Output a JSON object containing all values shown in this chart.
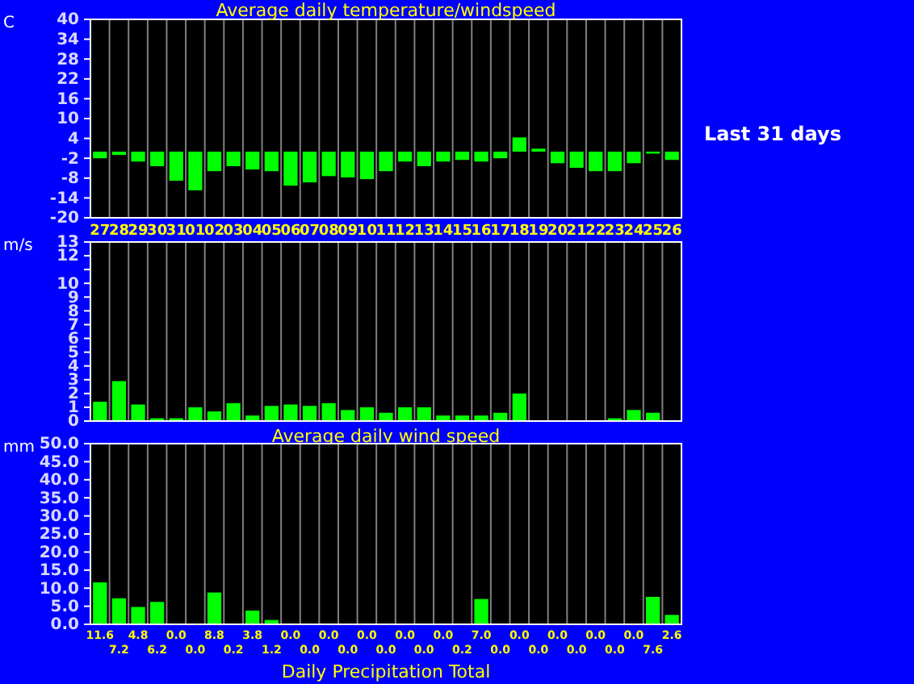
{
  "chart_data": [
    {
      "type": "bar",
      "title": "Average daily temperature/windspeed",
      "ylabel": "C",
      "annotations": [
        "Last 31 days"
      ],
      "categories": [
        "27",
        "28",
        "29",
        "30",
        "31",
        "01",
        "02",
        "03",
        "04",
        "05",
        "06",
        "07",
        "08",
        "09",
        "10",
        "11",
        "12",
        "13",
        "14",
        "15",
        "16",
        "17",
        "18",
        "19",
        "20",
        "21",
        "22",
        "23",
        "24",
        "25",
        "26"
      ],
      "values": [
        -2.0,
        -1.0,
        -3.0,
        -4.4,
        -8.8,
        -11.7,
        -5.9,
        -4.4,
        -5.4,
        -5.9,
        -10.3,
        -9.3,
        -7.4,
        -7.8,
        -8.3,
        -5.9,
        -3.0,
        -4.4,
        -3.0,
        -2.5,
        -3.0,
        -2.0,
        4.3,
        0.9,
        -3.5,
        -4.9,
        -5.9,
        -5.9,
        -3.5,
        -0.6,
        -2.5
      ],
      "color": "#00ff00",
      "ylim": [
        -20,
        40
      ],
      "yticks": [
        -20,
        -14,
        -8,
        -2,
        4,
        10,
        16,
        22,
        28,
        34,
        40
      ],
      "grid": "x"
    },
    {
      "type": "bar",
      "title": "Average daily wind speed",
      "ylabel": "m/s",
      "categories": [
        null,
        null,
        null,
        null,
        null,
        null,
        null,
        null,
        null,
        null,
        null,
        null,
        null,
        null,
        null,
        null,
        null,
        null,
        null,
        null,
        null,
        null,
        null,
        null,
        null,
        null,
        null,
        null,
        null,
        null,
        null
      ],
      "values": [
        1.4,
        2.9,
        1.2,
        0.2,
        0.2,
        1.0,
        0.7,
        1.3,
        0.4,
        1.1,
        1.2,
        1.1,
        1.3,
        0.8,
        1.0,
        0.6,
        1.0,
        1.0,
        0.4,
        0.4,
        0.4,
        0.6,
        2.0,
        0,
        0,
        0,
        0,
        0.2,
        0.8,
        0.6,
        0
      ],
      "color": "#00ff00",
      "ylim": [
        0,
        13
      ],
      "yticks": [
        0,
        1,
        2,
        3,
        4,
        5,
        6,
        7,
        8,
        9,
        10,
        {
          "value": 11,
          "label": null
        },
        12,
        13
      ],
      "grid": "x",
      "tick_labels": "y"
    },
    {
      "type": "bar",
      "title": "Daily Precipitation Total",
      "ylabel": "mm",
      "categories": [
        null,
        null,
        null,
        null,
        null,
        null,
        null,
        null,
        null,
        null,
        null,
        null,
        null,
        null,
        null,
        null,
        null,
        null,
        null,
        null,
        null,
        null,
        null,
        null,
        null,
        null,
        null,
        null,
        null,
        null,
        null
      ],
      "values": [
        11.6,
        7.2,
        4.8,
        6.2,
        0.0,
        0.0,
        8.8,
        0.2,
        3.8,
        1.2,
        0.0,
        0.0,
        0.0,
        0.0,
        0.0,
        0.0,
        0.0,
        0.0,
        0.0,
        0.2,
        7.0,
        0.0,
        0.0,
        0.0,
        0.0,
        0.0,
        0.0,
        0.0,
        0.0,
        7.6,
        2.6
      ],
      "value_labels": [
        "11.6",
        "7.2",
        "4.8",
        "6.2",
        "0.0",
        "0.0",
        "8.8",
        "0.2",
        "3.8",
        "1.2",
        "0.0",
        "0.0",
        "0.0",
        "0.0",
        "0.0",
        "0.0",
        "0.0",
        "0.0",
        "0.0",
        "0.2",
        "7.0",
        "0.0",
        "0.0",
        "0.0",
        "0.0",
        "0.0",
        "0.0",
        "0.0",
        "0.0",
        "7.6",
        "2.6"
      ],
      "color": "#00ff00",
      "ylim": [
        0,
        50
      ],
      "yticks": [
        {
          "value": 0,
          "label": "0.0"
        },
        {
          "value": 5,
          "label": "5.0"
        },
        {
          "value": 10,
          "label": "10.0"
        },
        {
          "value": 15,
          "label": "15.0"
        },
        {
          "value": 20,
          "label": "20.0"
        },
        {
          "value": 25,
          "label": "25.0"
        },
        {
          "value": 30,
          "label": "30.0"
        },
        {
          "value": 35,
          "label": "35.0"
        },
        {
          "value": 40,
          "label": "40.0"
        },
        {
          "value": 45,
          "label": "45.0"
        },
        {
          "value": 50,
          "label": "50.0"
        }
      ],
      "grid": "x",
      "tick_labels": "y"
    }
  ]
}
